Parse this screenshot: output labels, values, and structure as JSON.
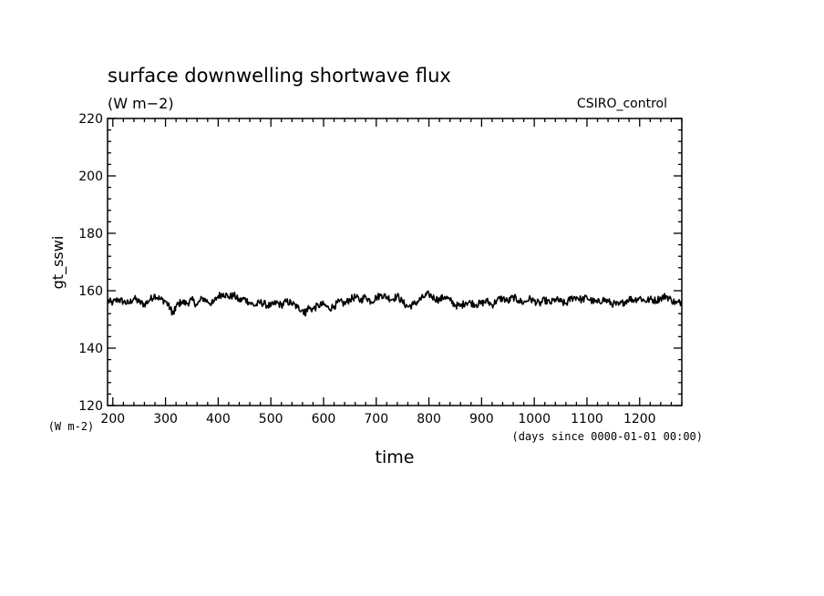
{
  "chart_data": {
    "type": "line",
    "title": "surface downwelling shortwave flux",
    "subtitle": "(W m−2)",
    "source_label": "CSIRO_control",
    "ylabel": "gt_sswi",
    "y_unit_label": "(W m-2)",
    "xlabel": "time",
    "x_unit_label": "(days since 0000-01-01 00:00)",
    "xlim": [
      190,
      1280
    ],
    "ylim": [
      120,
      220
    ],
    "x_ticks": [
      200,
      300,
      400,
      500,
      600,
      700,
      800,
      900,
      1000,
      1100,
      1200
    ],
    "x_tick_labels": [
      "200",
      "300",
      "400",
      "500",
      "600",
      "700",
      "800",
      "900",
      "1000",
      "1100",
      "1200"
    ],
    "y_ticks": [
      120,
      140,
      160,
      180,
      200,
      220
    ],
    "y_tick_labels": [
      "120",
      "140",
      "160",
      "180",
      "200",
      "220"
    ],
    "grid": false,
    "series": [
      {
        "color": "#000000",
        "x": [
          190,
          200,
          210,
          220,
          230,
          240,
          250,
          260,
          270,
          280,
          290,
          300,
          310,
          315,
          320,
          330,
          340,
          350,
          360,
          370,
          380,
          390,
          400,
          410,
          420,
          430,
          440,
          450,
          460,
          470,
          480,
          490,
          500,
          510,
          520,
          530,
          540,
          550,
          560,
          565,
          570,
          580,
          590,
          600,
          610,
          620,
          630,
          640,
          650,
          660,
          670,
          680,
          690,
          700,
          710,
          720,
          730,
          740,
          750,
          760,
          770,
          780,
          790,
          800,
          810,
          820,
          830,
          840,
          850,
          860,
          870,
          880,
          890,
          900,
          910,
          920,
          930,
          940,
          950,
          960,
          970,
          980,
          990,
          1000,
          1010,
          1020,
          1030,
          1040,
          1050,
          1060,
          1070,
          1080,
          1090,
          1100,
          1110,
          1120,
          1130,
          1140,
          1150,
          1160,
          1170,
          1180,
          1190,
          1200,
          1210,
          1220,
          1230,
          1240,
          1250,
          1260,
          1270,
          1280
        ],
        "y": [
          156.5,
          155.8,
          157.0,
          156.2,
          155.5,
          157.4,
          156.0,
          155.2,
          156.8,
          158.5,
          157.0,
          156.4,
          153.5,
          151.8,
          154.5,
          156.2,
          155.5,
          156.8,
          155.0,
          157.5,
          156.2,
          155.6,
          158.2,
          159.0,
          157.8,
          158.4,
          156.5,
          157.2,
          155.8,
          154.8,
          156.0,
          155.2,
          154.6,
          155.8,
          155.0,
          156.2,
          155.6,
          154.2,
          153.4,
          152.2,
          154.0,
          153.6,
          154.8,
          155.2,
          153.8,
          154.6,
          156.2,
          155.4,
          157.0,
          157.8,
          156.6,
          158.0,
          156.2,
          157.6,
          158.6,
          157.8,
          157.0,
          158.2,
          156.0,
          154.4,
          155.2,
          156.4,
          157.8,
          158.8,
          157.4,
          156.8,
          158.0,
          156.6,
          155.0,
          154.6,
          156.0,
          155.8,
          155.2,
          155.6,
          156.4,
          155.0,
          156.8,
          157.4,
          156.2,
          157.8,
          156.6,
          155.8,
          157.2,
          156.4,
          155.4,
          156.8,
          155.6,
          157.0,
          156.2,
          155.4,
          157.4,
          157.8,
          156.8,
          157.6,
          156.4,
          155.8,
          157.0,
          156.2,
          155.4,
          155.0,
          156.0,
          157.2,
          156.8,
          157.6,
          156.4,
          157.0,
          156.6,
          157.4,
          158.2,
          156.8,
          155.6,
          156.2
        ]
      }
    ]
  }
}
